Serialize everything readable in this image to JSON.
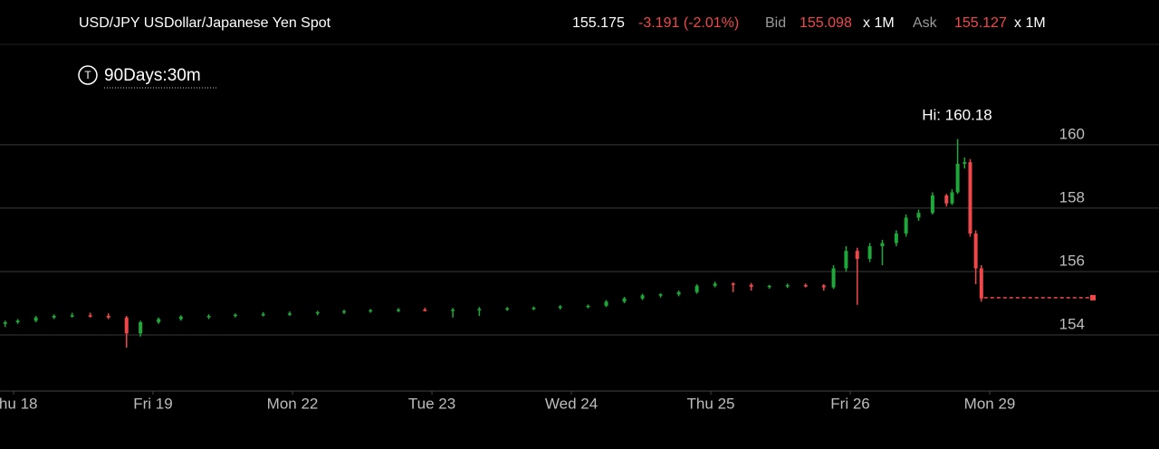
{
  "header": {
    "symbol": "USD/JPY USDollar/Japanese Yen Spot",
    "last": 155.175,
    "change": "-3.191 (-2.01%)",
    "bid_label": "Bid",
    "bid": 155.098,
    "bid_size": "x 1M",
    "ask_label": "Ask",
    "ask": 155.127,
    "ask_size": "x 1M",
    "timeframe_icon": "T",
    "timeframe": "90Days:30m"
  },
  "chart_data": {
    "type": "candlestick",
    "annotation": "Hi: 160.18",
    "up_color": "#1fa83a",
    "down_color": "#f0474b",
    "grid": true,
    "xlim": [
      -0.0974,
      8.214
    ],
    "ylim": [
      152.23,
      161.71
    ],
    "xticks": [
      {
        "value": 0,
        "label": "Thu 18"
      },
      {
        "value": 1,
        "label": "Fri 19"
      },
      {
        "value": 2,
        "label": "Mon 22"
      },
      {
        "value": 3,
        "label": "Tue 23"
      },
      {
        "value": 4,
        "label": "Wed 24"
      },
      {
        "value": 5,
        "label": "Thu 25"
      },
      {
        "value": 6,
        "label": "Fri 26"
      },
      {
        "value": 7,
        "label": "Mon 29"
      }
    ],
    "yticks": [
      154,
      156,
      158,
      160
    ],
    "x": [
      -0.06,
      0.03,
      0.16,
      0.29,
      0.42,
      0.55,
      0.68,
      0.81,
      0.91,
      1.04,
      1.2,
      1.4,
      1.59,
      1.79,
      1.98,
      2.18,
      2.37,
      2.56,
      2.76,
      2.95,
      3.15,
      3.34,
      3.54,
      3.73,
      3.92,
      4.12,
      4.25,
      4.38,
      4.51,
      4.64,
      4.77,
      4.9,
      5.03,
      5.16,
      5.29,
      5.42,
      5.55,
      5.68,
      5.81,
      5.88,
      5.97,
      6.05,
      6.14,
      6.23,
      6.33,
      6.4,
      6.49,
      6.59,
      6.69,
      6.73,
      6.77,
      6.82,
      6.86,
      6.9,
      6.94
    ],
    "open": [
      154.35,
      154.4,
      154.45,
      154.55,
      154.6,
      154.62,
      154.6,
      154.55,
      154.05,
      154.4,
      154.5,
      154.58,
      154.6,
      154.64,
      154.66,
      154.68,
      154.72,
      154.75,
      154.78,
      154.8,
      154.78,
      154.8,
      154.82,
      154.84,
      154.86,
      154.9,
      154.92,
      155.05,
      155.15,
      155.25,
      155.28,
      155.35,
      155.55,
      155.62,
      155.58,
      155.52,
      155.55,
      155.57,
      155.56,
      155.5,
      156.1,
      156.65,
      156.4,
      156.8,
      156.9,
      157.2,
      157.7,
      157.85,
      158.4,
      158.15,
      158.5,
      159.4,
      159.45,
      157.2,
      156.1
    ],
    "high": [
      154.45,
      154.5,
      154.6,
      154.65,
      154.7,
      154.7,
      154.68,
      154.6,
      154.45,
      154.55,
      154.62,
      154.65,
      154.68,
      154.72,
      154.74,
      154.76,
      154.8,
      154.82,
      154.85,
      154.86,
      154.85,
      154.88,
      154.88,
      154.9,
      154.94,
      154.96,
      155.1,
      155.2,
      155.3,
      155.32,
      155.4,
      155.6,
      155.68,
      155.66,
      155.64,
      155.58,
      155.62,
      155.62,
      155.6,
      156.2,
      156.8,
      156.75,
      156.9,
      157.0,
      157.3,
      157.8,
      157.95,
      158.5,
      158.45,
      158.6,
      160.18,
      159.6,
      159.55,
      157.3,
      156.2
    ],
    "low": [
      154.25,
      154.35,
      154.4,
      154.5,
      154.55,
      154.55,
      154.5,
      153.6,
      153.95,
      154.35,
      154.45,
      154.5,
      154.55,
      154.58,
      154.6,
      154.62,
      154.66,
      154.7,
      154.72,
      154.74,
      154.55,
      154.6,
      154.76,
      154.78,
      154.8,
      154.84,
      154.88,
      155.0,
      155.1,
      155.18,
      155.22,
      155.3,
      155.5,
      155.35,
      155.4,
      155.46,
      155.48,
      155.5,
      155.4,
      155.45,
      156.0,
      154.95,
      156.3,
      156.2,
      156.8,
      157.1,
      157.6,
      157.8,
      158.05,
      158.1,
      158.45,
      159.25,
      157.1,
      155.6,
      155.05
    ],
    "close": [
      154.4,
      154.45,
      154.55,
      154.6,
      154.62,
      154.6,
      154.55,
      154.05,
      154.4,
      154.5,
      154.58,
      154.6,
      154.64,
      154.66,
      154.68,
      154.72,
      154.75,
      154.78,
      154.8,
      154.78,
      154.8,
      154.82,
      154.84,
      154.86,
      154.9,
      154.92,
      155.05,
      155.15,
      155.25,
      155.28,
      155.35,
      155.55,
      155.62,
      155.58,
      155.52,
      155.55,
      155.57,
      155.56,
      155.5,
      156.1,
      156.65,
      156.4,
      156.8,
      156.9,
      157.2,
      157.7,
      157.85,
      158.4,
      158.15,
      158.5,
      159.4,
      159.45,
      157.2,
      156.1,
      155.15
    ]
  }
}
